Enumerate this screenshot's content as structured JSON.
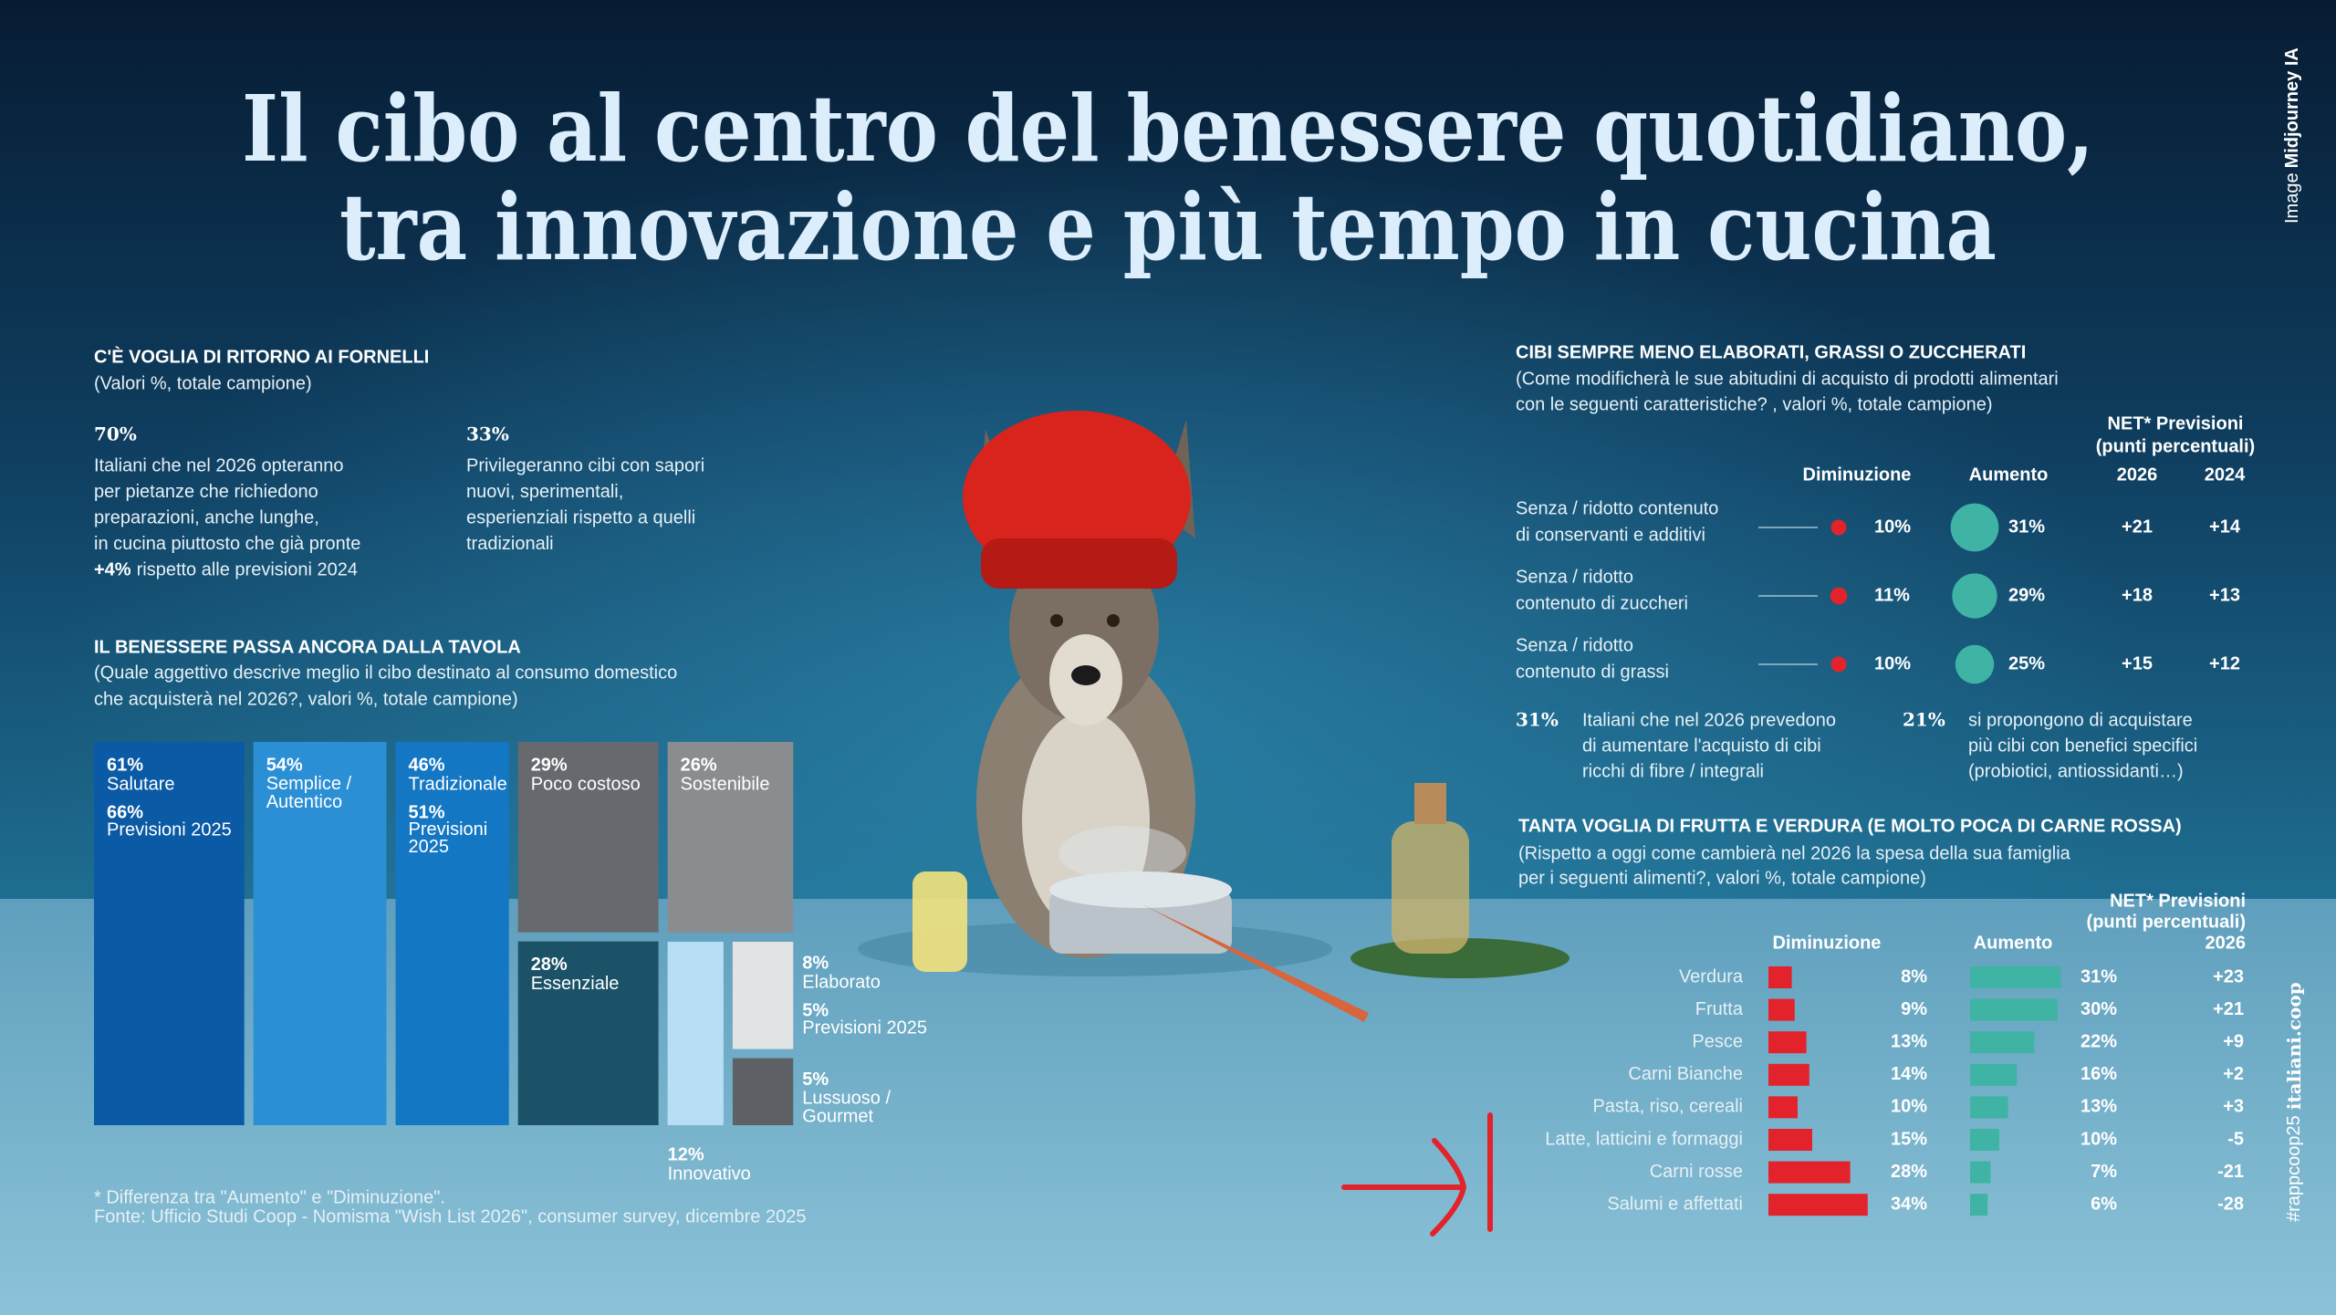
{
  "header": {
    "title": [
      "Il cibo al centro del benessere quotidiano,",
      "tra innovazione e più tempo in cucina"
    ],
    "credit_prefix": "Image",
    "credit": "Midjourney IA",
    "hashtag": "#rappcoop25",
    "site": "italiani.coop"
  },
  "intro": {
    "title": "C'È VOGLIA DI RITORNO AI FORNELLI",
    "subtitle": "(Valori %, totale campione)",
    "stats": [
      {
        "value": "70%",
        "lines": [
          "Italiani che nel 2026 opteranno",
          "per pietanze che richiedono",
          "preparazioni, anche lunghe,",
          "in cucina piuttosto che già pronte"
        ],
        "highlight": "+4%",
        "highlight_rest": "rispetto alle previsioni 2024"
      },
      {
        "value": "33%",
        "lines": [
          "Privilegeranno cibi con sapori",
          "nuovi, sperimentali,",
          "esperienziali rispetto a quelli",
          "tradizionali"
        ]
      }
    ]
  },
  "chart_data": [
    {
      "type": "treemap",
      "title": "IL BENESSERE PASSA ANCORA DALLA TAVOLA",
      "subtitle": [
        "(Quale aggettivo descrive meglio il cibo destinato al consumo domestico",
        "che acquisterà nel 2026?, valori %, totale campione)"
      ],
      "categories": [
        "Salutare",
        "Semplice / Autentico",
        "Tradizionale",
        "Poco costoso",
        "Essenziale",
        "Sostenibile",
        "Innovativo",
        "Elaborato",
        "Lussuoso / Gourmet"
      ],
      "values": [
        61,
        54,
        46,
        29,
        28,
        26,
        12,
        8,
        5
      ],
      "value_labels": [
        "61%",
        "54%",
        "46%",
        "29%",
        "28%",
        "26%",
        "12%",
        "8%",
        "5%"
      ],
      "colors": [
        "#0a5aa6",
        "#2b8fd6",
        "#1477c4",
        "#66696d",
        "#1b5268",
        "#8a8d90",
        "#b8def5",
        "#e2e3e4",
        "#5e6266"
      ],
      "forecast_labels": [
        "66%",
        null,
        "51%",
        null,
        null,
        null,
        null,
        "5%",
        null
      ],
      "forecast_name": "Previsioni 2025"
    },
    {
      "type": "dot",
      "title": "CIBI SEMPRE MENO ELABORATI, GRASSI O ZUCCHERATI",
      "subtitle": [
        "(Come modificherà le sue abitudini di acquisto di prodotti alimentari",
        "con le seguenti caratteristiche? , valori %, totale campione)"
      ],
      "categories": [
        [
          "Senza / ridotto contenuto",
          "di conservanti e additivi"
        ],
        [
          "Senza / ridotto",
          "contenuto di zuccheri"
        ],
        [
          "Senza / ridotto",
          "contenuto di grassi"
        ]
      ],
      "series": [
        {
          "name": "Diminuzione",
          "color": "#e3232b",
          "values": [
            10,
            11,
            10
          ],
          "value_labels": [
            "10%",
            "11%",
            "10%"
          ]
        },
        {
          "name": "Aumento",
          "color": "#3fb3a4",
          "values": [
            31,
            29,
            25
          ],
          "value_labels": [
            "31%",
            "29%",
            "25%"
          ]
        }
      ],
      "net": {
        "title": [
          "NET* Previsioni",
          "(punti percentuali)"
        ],
        "columns": [
          "2026",
          "2024"
        ],
        "rows": [
          [
            "+21",
            "+14"
          ],
          [
            "+18",
            "+13"
          ],
          [
            "+15",
            "+12"
          ]
        ]
      },
      "callouts": [
        {
          "value": "31%",
          "lines": [
            "Italiani che nel 2026 prevedono",
            "di aumentare l'acquisto di cibi",
            "ricchi di fibre / integrali"
          ]
        },
        {
          "value": "21%",
          "lines": [
            "si propongono di acquistare",
            "più cibi con benefici specifici",
            "(probiotici, antiossidanti…)"
          ]
        }
      ]
    },
    {
      "type": "bar",
      "orientation": "horizontal",
      "title": "TANTA VOGLIA DI FRUTTA E VERDURA (E MOLTO POCA DI CARNE ROSSA)",
      "subtitle": [
        "(Rispetto a oggi come cambierà nel 2026 la spesa della sua famiglia",
        "per i seguenti alimenti?, valori %, totale campione)"
      ],
      "categories": [
        "Verdura",
        "Frutta",
        "Pesce",
        "Carni Bianche",
        "Pasta, riso, cereali",
        "Latte, latticini e formaggi",
        "Carni rosse",
        "Salumi e affettati"
      ],
      "series": [
        {
          "name": "Diminuzione",
          "color": "#e3232b",
          "values": [
            8,
            9,
            13,
            14,
            10,
            15,
            28,
            34
          ],
          "value_labels": [
            "8%",
            "9%",
            "13%",
            "14%",
            "10%",
            "15%",
            "28%",
            "34%"
          ]
        },
        {
          "name": "Aumento",
          "color": "#3fb3a4",
          "values": [
            31,
            30,
            22,
            16,
            13,
            10,
            7,
            6
          ],
          "value_labels": [
            "31%",
            "30%",
            "22%",
            "16%",
            "13%",
            "10%",
            "7%",
            "6%"
          ]
        }
      ],
      "net": {
        "title": [
          "NET* Previsioni",
          "(punti percentuali)"
        ],
        "columns": [
          "2026"
        ],
        "rows": [
          [
            "+23"
          ],
          [
            "+21"
          ],
          [
            "+9"
          ],
          [
            "+2"
          ],
          [
            "+3"
          ],
          [
            "-5"
          ],
          [
            "-21"
          ],
          [
            "-28"
          ]
        ]
      }
    }
  ],
  "footer": {
    "note": "* Differenza tra \"Aumento\" e \"Diminuzione\".",
    "source": "Fonte: Ufficio Studi Coop - Nomisma \"Wish List 2026\", consumer survey, dicembre 2025"
  }
}
